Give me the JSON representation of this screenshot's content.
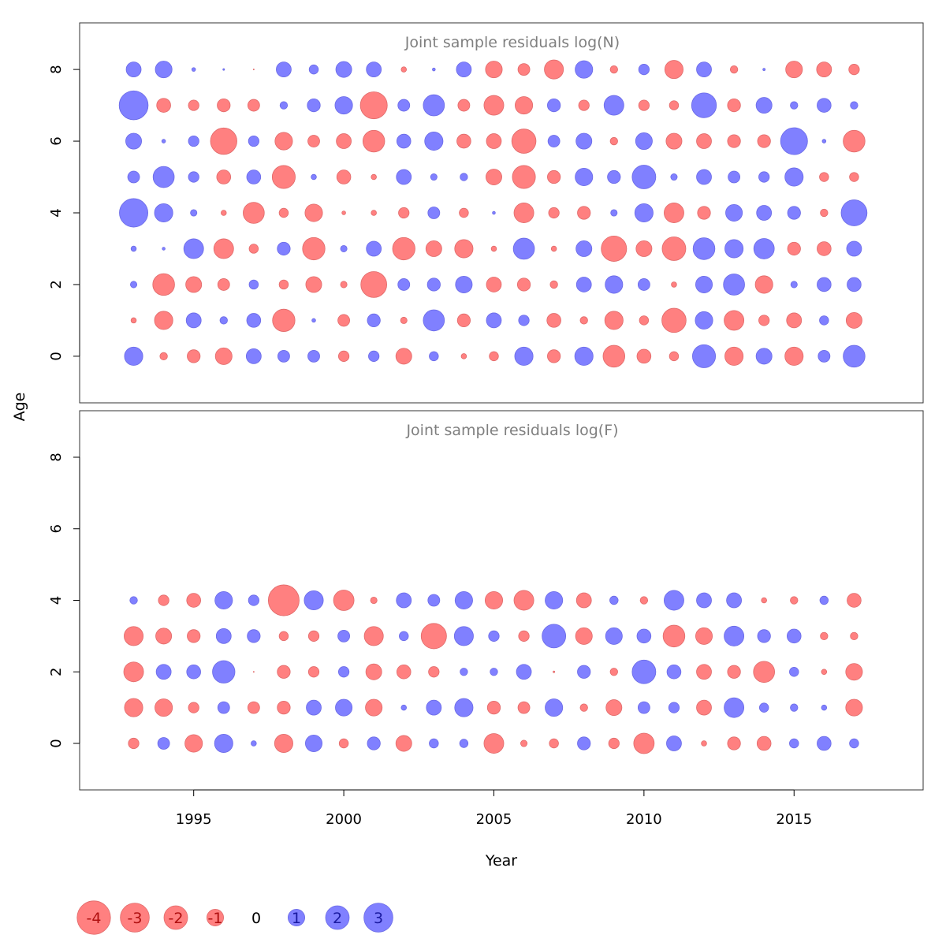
{
  "chart_data": {
    "type": "bubble",
    "xlabel": "Year",
    "ylabel": "Age",
    "colors": {
      "positive": "#8080ff",
      "negative": "#ff8080",
      "positive_stroke": "#6a6ae6",
      "negative_stroke": "#e06a6a"
    },
    "x_ticks": [
      1995,
      2000,
      2005,
      2010,
      2015
    ],
    "y_ticks": [
      0,
      2,
      4,
      6,
      8
    ],
    "xlim": [
      1991.2,
      2019.3
    ],
    "ylim": [
      -1.3,
      9.3
    ],
    "size_scale": "radius proportional to sqrt(|residual|)",
    "legend": {
      "values": [
        -4,
        -3,
        -2,
        -1,
        0,
        1,
        2,
        3
      ],
      "labels": [
        "-4",
        "-3",
        "-2",
        "-1",
        "0",
        "1",
        "2",
        "3"
      ],
      "position": "bottom-left"
    },
    "panels": [
      {
        "title": "Joint sample residuals log(N)",
        "years": [
          1993,
          1994,
          1995,
          1996,
          1997,
          1998,
          1999,
          2000,
          2001,
          2002,
          2003,
          2004,
          2005,
          2006,
          2007,
          2008,
          2009,
          2010,
          2011,
          2012,
          2013,
          2014,
          2015,
          2016,
          2017
        ],
        "ages": [
          0,
          1,
          2,
          3,
          4,
          5,
          6,
          7,
          8
        ],
        "residuals": [
          [
            1.2,
            -0.2,
            -0.6,
            -1.0,
            0.8,
            0.5,
            0.5,
            -0.4,
            0.4,
            -0.9,
            0.3,
            -0.1,
            -0.3,
            1.2,
            -0.6,
            1.2,
            -1.7,
            -0.7,
            -0.3,
            1.9,
            -1.2,
            0.9,
            -1.2,
            0.5,
            1.7
          ],
          [
            -0.1,
            -1.2,
            0.8,
            0.2,
            0.7,
            -1.8,
            0.05,
            -0.5,
            0.6,
            -0.15,
            1.6,
            -0.6,
            0.8,
            0.4,
            -0.7,
            -0.2,
            -1.2,
            -0.3,
            -2.1,
            1.1,
            -1.4,
            -0.4,
            -0.8,
            0.3,
            -0.9
          ],
          [
            0.15,
            -1.7,
            -0.9,
            -0.5,
            0.3,
            -0.3,
            -0.9,
            -0.15,
            -2.4,
            0.5,
            0.6,
            1.0,
            -0.8,
            -0.6,
            -0.2,
            0.8,
            1.1,
            0.5,
            -0.1,
            1.0,
            1.6,
            -1.1,
            0.15,
            0.7,
            0.7
          ],
          [
            0.1,
            0.03,
            1.4,
            -1.4,
            -0.3,
            0.6,
            -1.8,
            0.15,
            0.8,
            -1.8,
            -0.9,
            -1.2,
            -0.1,
            1.6,
            -0.1,
            0.9,
            -2.3,
            -0.9,
            -2.0,
            1.7,
            1.2,
            1.5,
            -0.6,
            -0.7,
            0.8
          ],
          [
            2.9,
            1.2,
            0.15,
            -0.1,
            -1.6,
            -0.3,
            -1.1,
            -0.05,
            -0.1,
            -0.4,
            0.5,
            -0.3,
            0.03,
            -1.4,
            -0.4,
            -0.6,
            0.15,
            1.2,
            -1.4,
            -0.6,
            1.0,
            0.8,
            0.6,
            -0.2,
            2.4
          ],
          [
            0.5,
            1.6,
            0.4,
            -0.7,
            0.7,
            -1.9,
            0.1,
            -0.7,
            -0.1,
            0.8,
            0.15,
            0.2,
            -0.9,
            -1.9,
            -0.6,
            1.1,
            0.6,
            2.0,
            0.15,
            0.8,
            0.5,
            0.4,
            1.2,
            -0.3,
            -0.3
          ],
          [
            0.9,
            0.05,
            0.4,
            -2.5,
            0.4,
            -1.1,
            -0.5,
            -0.8,
            -1.7,
            0.7,
            1.2,
            -0.7,
            -0.8,
            -2.1,
            0.5,
            0.9,
            -0.2,
            1.0,
            -0.9,
            -0.8,
            -0.6,
            -0.6,
            2.6,
            0.05,
            -1.7
          ],
          [
            3.0,
            -0.7,
            -0.4,
            -0.6,
            -0.5,
            0.2,
            0.6,
            1.1,
            -2.6,
            0.5,
            1.6,
            -0.5,
            -1.4,
            -1.1,
            0.6,
            -0.4,
            1.4,
            -0.4,
            -0.3,
            2.2,
            -0.6,
            0.9,
            0.2,
            0.7,
            0.2
          ],
          [
            0.8,
            1.0,
            0.05,
            0.01,
            -0.003,
            0.8,
            0.3,
            0.9,
            0.8,
            -0.1,
            0.03,
            0.8,
            -1.0,
            -0.5,
            -1.3,
            1.1,
            -0.2,
            0.4,
            -1.2,
            0.8,
            -0.2,
            0.02,
            -1.0,
            -0.8,
            -0.4
          ]
        ]
      },
      {
        "title": "Joint sample residuals log(F)",
        "years": [
          1993,
          1994,
          1995,
          1996,
          1997,
          1998,
          1999,
          2000,
          2001,
          2002,
          2003,
          2004,
          2005,
          2006,
          2007,
          2008,
          2009,
          2010,
          2011,
          2012,
          2013,
          2014,
          2015,
          2016,
          2017
        ],
        "ages": [
          0,
          1,
          2,
          3,
          4
        ],
        "residuals": [
          [
            -0.4,
            0.5,
            -1.1,
            1.2,
            0.1,
            -1.2,
            1.0,
            -0.3,
            0.6,
            -0.9,
            0.3,
            0.25,
            -1.4,
            -0.15,
            -0.3,
            0.6,
            -0.4,
            -1.5,
            0.8,
            -0.1,
            -0.6,
            -0.7,
            0.3,
            0.7,
            0.3
          ],
          [
            -1.2,
            -1.1,
            -0.4,
            0.5,
            -0.5,
            -0.6,
            0.8,
            1.0,
            -1.0,
            0.1,
            0.8,
            1.2,
            -0.6,
            -0.5,
            1.1,
            -0.2,
            -0.9,
            0.5,
            0.4,
            -0.8,
            1.4,
            0.3,
            0.2,
            0.1,
            -1.0
          ],
          [
            -1.4,
            0.8,
            0.7,
            1.8,
            -0.003,
            -0.6,
            -0.4,
            0.4,
            -0.9,
            -0.7,
            -0.4,
            0.2,
            0.2,
            0.8,
            -0.01,
            0.6,
            -0.2,
            2.0,
            0.7,
            -0.8,
            -0.6,
            -1.6,
            0.3,
            -0.1,
            -1.0
          ],
          [
            -1.3,
            -0.9,
            -0.6,
            0.8,
            0.6,
            -0.3,
            -0.4,
            0.5,
            -1.3,
            0.3,
            -2.3,
            1.3,
            0.4,
            -0.4,
            2.0,
            -1.0,
            1.0,
            0.7,
            -1.7,
            -1.0,
            1.4,
            0.6,
            0.7,
            -0.2,
            -0.2
          ],
          [
            0.2,
            -0.4,
            -0.7,
            1.1,
            0.4,
            -3.4,
            1.3,
            -1.5,
            -0.15,
            0.8,
            0.5,
            1.1,
            -1.1,
            -1.4,
            1.1,
            -0.8,
            0.25,
            -0.2,
            1.4,
            0.8,
            0.8,
            -0.1,
            -0.2,
            0.25,
            -0.7
          ]
        ]
      }
    ]
  }
}
